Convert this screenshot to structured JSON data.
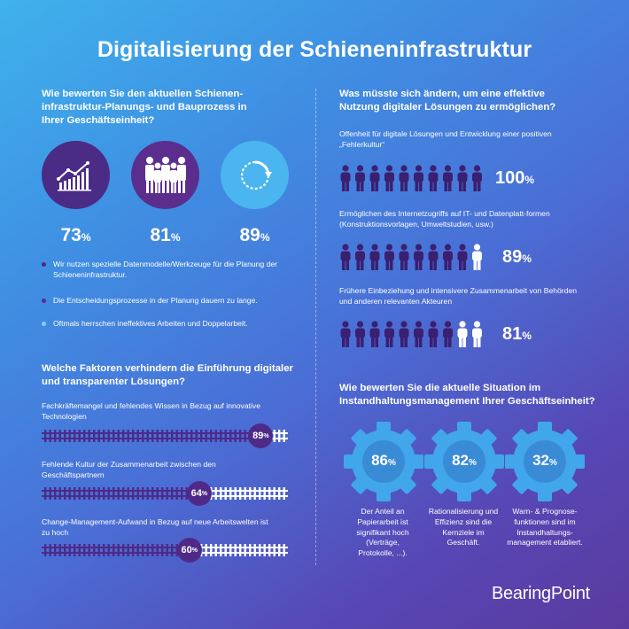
{
  "title": "Digitalisierung der Schieneninfrastruktur",
  "left": {
    "q1": "Wie bewerten Sie den aktuellen Schienen-infrastruktur-Planungs- und Bauprozess in Ihrer Geschäftseinheit?",
    "stats": [
      {
        "value": "73",
        "unit": "%",
        "icon": "chart-growth-icon",
        "color": "#4a2b86"
      },
      {
        "value": "81",
        "unit": "%",
        "icon": "people-group-icon",
        "color": "#5b2e8d"
      },
      {
        "value": "89",
        "unit": "%",
        "icon": "refresh-cycle-icon",
        "color": "#4ab5ef"
      }
    ],
    "legend": [
      {
        "text": "Wir nutzen spezielle Datenmodelle/Werkzeuge für die Planung der Schieneninfrastruktur.",
        "color": "#4a2b86"
      },
      {
        "text": "Die Entscheidungsprozesse in der Planung dauern zu lange.",
        "color": "#5b2e8d"
      },
      {
        "text": "Oftmals herrschen ineffektives Arbeiten und Doppelarbeit.",
        "color": "#7fd0f7"
      }
    ],
    "q2": "Welche Faktoren verhindern die Einführung digitaler und transparenter Lösungen?",
    "factors": [
      {
        "label": "Fachkräftemangel und fehlendes Wissen in Bezug auf innovative Technologien",
        "value": "89",
        "unit": "%",
        "fraction": 0.89
      },
      {
        "label": "Fehlende Kultur der Zusammenarbeit zwischen den Geschäftspartnern",
        "value": "64",
        "unit": "%",
        "fraction": 0.64
      },
      {
        "label": "Change-Management-Aufwand in Bezug auf neue Arbeitswelten ist zu hoch",
        "value": "60",
        "unit": "%",
        "fraction": 0.6
      }
    ]
  },
  "right": {
    "q1": "Was müsste sich ändern, um eine effektive Nutzung digitaler Lösungen zu ermöglichen?",
    "needs": [
      {
        "label": "Offenheit für digitale Lösungen und Entwicklung einer positiven „Fehlerkultur“",
        "value": "100",
        "unit": "%",
        "filled_of_ten": 10
      },
      {
        "label": "Ermöglichen des Internetzugriffs auf IT- und Datenplatt-formen (Konstruktionsvorlagen, Umweltstudien, usw.)",
        "value": "89",
        "unit": "%",
        "filled_of_ten": 9
      },
      {
        "label": "Frühere Einbeziehung und intensivere Zusammenarbeit von Behörden und anderen relevanten Akteuren",
        "value": "81",
        "unit": "%",
        "filled_of_ten": 8
      }
    ],
    "q2": "Wie bewerten Sie die aktuelle Situation im Instandhaltungsmanagement Ihrer Geschäftseinheit?",
    "gears": [
      {
        "value": "86",
        "unit": "%",
        "text": "Der Anteil an Papierarbeit ist signifikant hoch (Verträge, Protokolle, ...)."
      },
      {
        "value": "82",
        "unit": "%",
        "text": "Rationalisierung und Effizienz sind die Kernziele im Geschäft."
      },
      {
        "value": "32",
        "unit": "%",
        "text": "Warn- & Prognose-funktionen sind im Instandhaltungs-management etabliert."
      }
    ]
  },
  "brand": "BearingPoint",
  "colors": {
    "dark_purple": "#4a2b86",
    "light_blue": "#4ab5ef",
    "gear_blue": "#41a6ea",
    "person_dark": "#3b1f70"
  }
}
